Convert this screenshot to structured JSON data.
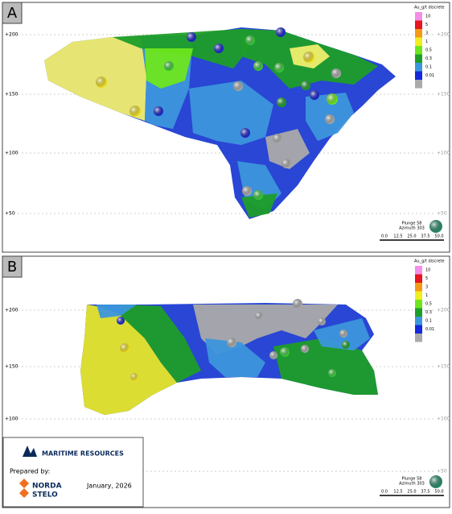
{
  "panels": [
    {
      "label": "A",
      "legend": {
        "title": "Au_g/t discrete",
        "entries": [
          {
            "label": "10",
            "color": "#f58ee8"
          },
          {
            "label": "5",
            "color": "#e8141e"
          },
          {
            "label": "3",
            "color": "#f59a14"
          },
          {
            "label": "1",
            "color": "#f0ee1e"
          },
          {
            "label": "0.5",
            "color": "#6ee61e"
          },
          {
            "label": "0.3",
            "color": "#1e9e28"
          },
          {
            "label": "0.1",
            "color": "#3c96dc"
          },
          {
            "label": "0.01",
            "color": "#1428dc"
          }
        ]
      },
      "grid_labels": [
        "+200",
        "+150",
        "+100",
        "+50"
      ],
      "orientation": {
        "plunge": "Plunge 58",
        "azimuth": "Azimuth 303"
      },
      "scale": [
        "0.0",
        "12.5",
        "25.0",
        "37.5",
        "50.0"
      ]
    },
    {
      "label": "B",
      "legend": {
        "title": "Au_g/t discrete",
        "entries": [
          {
            "label": "10",
            "color": "#f58ee8"
          },
          {
            "label": "5",
            "color": "#e8141e"
          },
          {
            "label": "3",
            "color": "#f59a14"
          },
          {
            "label": "1",
            "color": "#f0ee1e"
          },
          {
            "label": "0.5",
            "color": "#6ee61e"
          },
          {
            "label": "0.3",
            "color": "#1e9e28"
          },
          {
            "label": "0.1",
            "color": "#3c96dc"
          },
          {
            "label": "0.01",
            "color": "#1428dc"
          }
        ]
      },
      "grid_labels": [
        "+200",
        "+150",
        "+100",
        "+50"
      ],
      "orientation": {
        "plunge": "Plunge 58",
        "azimuth": "Azimuth 303"
      },
      "scale": [
        "0.0",
        "12.5",
        "25.0",
        "37.5",
        "50.0"
      ]
    }
  ],
  "logo": {
    "company": "MARITIME RESOURCES",
    "prepared": "Prepared by:",
    "firm_top": "NORDA",
    "firm_bottom": "STELO",
    "date": "January, 2026"
  }
}
